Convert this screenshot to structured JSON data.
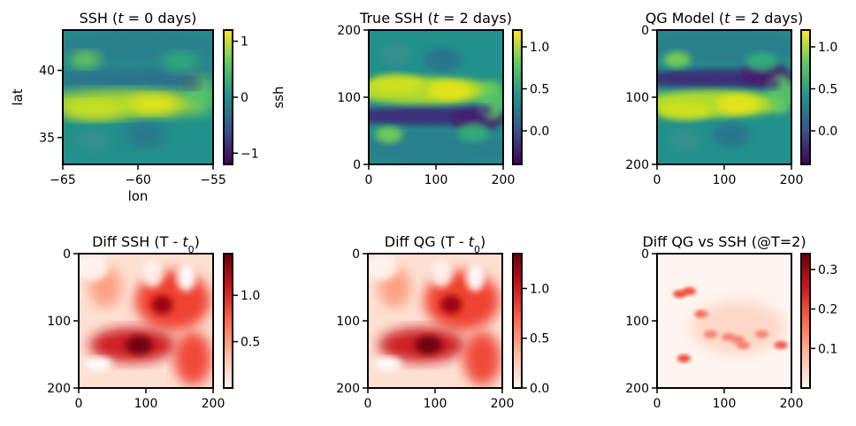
{
  "chart_data": [
    {
      "type": "heatmap",
      "title": "SSH ($t = 0$ days)",
      "title_parts": [
        {
          "t": "SSH ("
        },
        {
          "t": "t",
          "i": true
        },
        {
          "t": " = 0 days)"
        }
      ],
      "xlabel": "lon",
      "ylabel": "lat",
      "colorbar_label": "ssh",
      "xlim": [
        -65,
        -55
      ],
      "ylim": [
        33,
        43
      ],
      "x_ticks": [
        -65,
        -60,
        -55
      ],
      "x_tick_labels": [
        "−65",
        "−60",
        "−55"
      ],
      "y_ticks": [
        35,
        40
      ],
      "y_tick_labels": [
        "35",
        "40"
      ],
      "colormap": "viridis",
      "color_range": [
        -1.2,
        1.2
      ],
      "colorbar_ticks": [
        -1,
        0,
        1
      ],
      "colorbar_tick_labels": [
        "−1",
        "0",
        "1"
      ]
    },
    {
      "type": "heatmap",
      "title": "True SSH ($t = 2$ days)",
      "title_parts": [
        {
          "t": "True SSH ("
        },
        {
          "t": "t",
          "i": true
        },
        {
          "t": " = 2 days)"
        }
      ],
      "xlim": [
        0,
        200
      ],
      "ylim": [
        0,
        200
      ],
      "x_ticks": [
        0,
        100,
        200
      ],
      "x_tick_labels": [
        "0",
        "100",
        "200"
      ],
      "y_ticks": [
        0,
        100,
        200
      ],
      "y_tick_labels": [
        "0",
        "100",
        "200"
      ],
      "y_origin": "bottom",
      "colormap": "viridis",
      "color_range": [
        -0.4,
        1.2
      ],
      "colorbar_ticks": [
        0.0,
        0.5,
        1.0
      ],
      "colorbar_tick_labels": [
        "0.0",
        "0.5",
        "1.0"
      ]
    },
    {
      "type": "heatmap",
      "title": "QG Model ($t = 2$ days)",
      "title_parts": [
        {
          "t": "QG Model ("
        },
        {
          "t": "t",
          "i": true
        },
        {
          "t": " = 2 days)"
        }
      ],
      "xlim": [
        0,
        200
      ],
      "ylim": [
        200,
        0
      ],
      "x_ticks": [
        0,
        100,
        200
      ],
      "x_tick_labels": [
        "0",
        "100",
        "200"
      ],
      "y_ticks": [
        0,
        100,
        200
      ],
      "y_tick_labels": [
        "0",
        "100",
        "200"
      ],
      "y_origin": "top",
      "colormap": "viridis",
      "color_range": [
        -0.4,
        1.2
      ],
      "colorbar_ticks": [
        0.0,
        0.5,
        1.0
      ],
      "colorbar_tick_labels": [
        "0.0",
        "0.5",
        "1.0"
      ]
    },
    {
      "type": "heatmap",
      "title": "Diff SSH (T - $t_0$)",
      "title_parts": [
        {
          "t": "Diff SSH (T - "
        },
        {
          "t": "t",
          "i": true
        },
        {
          "t": "0",
          "sub": true
        },
        {
          "t": ")"
        }
      ],
      "xlim": [
        0,
        200
      ],
      "ylim": [
        200,
        0
      ],
      "x_ticks": [
        0,
        100,
        200
      ],
      "x_tick_labels": [
        "0",
        "100",
        "200"
      ],
      "y_ticks": [
        0,
        100,
        200
      ],
      "y_tick_labels": [
        "0",
        "100",
        "200"
      ],
      "y_origin": "top",
      "colormap": "Reds",
      "color_range": [
        0.0,
        1.45
      ],
      "colorbar_ticks": [
        0.5,
        1.0
      ],
      "colorbar_tick_labels": [
        "0.5",
        "1.0"
      ]
    },
    {
      "type": "heatmap",
      "title": "Diff QG (T - $t_0$)",
      "title_parts": [
        {
          "t": "Diff QG (T - "
        },
        {
          "t": "t",
          "i": true
        },
        {
          "t": "0",
          "sub": true
        },
        {
          "t": ")"
        }
      ],
      "xlim": [
        0,
        200
      ],
      "ylim": [
        200,
        0
      ],
      "x_ticks": [
        0,
        100,
        200
      ],
      "x_tick_labels": [
        "0",
        "100",
        "200"
      ],
      "y_ticks": [
        0,
        100,
        200
      ],
      "y_tick_labels": [
        "0",
        "100",
        "200"
      ],
      "y_origin": "top",
      "colormap": "Reds",
      "color_range": [
        0.0,
        1.35
      ],
      "colorbar_ticks": [
        0.0,
        0.5,
        1.0
      ],
      "colorbar_tick_labels": [
        "0.0",
        "0.5",
        "1.0"
      ]
    },
    {
      "type": "heatmap",
      "title": "Diff QG vs SSH (@T=2)",
      "title_parts": [
        {
          "t": "Diff QG vs SSH (@T=2)"
        }
      ],
      "xlim": [
        0,
        200
      ],
      "ylim": [
        200,
        0
      ],
      "x_ticks": [
        0,
        100,
        200
      ],
      "x_tick_labels": [
        "0",
        "100",
        "200"
      ],
      "y_ticks": [
        0,
        100,
        200
      ],
      "y_tick_labels": [
        "0",
        "100",
        "200"
      ],
      "y_origin": "top",
      "colormap": "Reds",
      "color_range": [
        0.0,
        0.34
      ],
      "colorbar_ticks": [
        0.1,
        0.2,
        0.3
      ],
      "colorbar_tick_labels": [
        "0.1",
        "0.2",
        "0.3"
      ]
    }
  ]
}
